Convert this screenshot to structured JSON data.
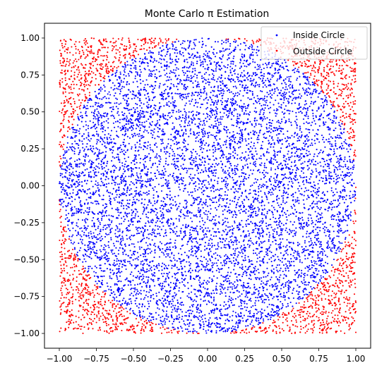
{
  "chart_data": {
    "type": "scatter",
    "title": "Monte Carlo π Estimation",
    "xlabel": "",
    "ylabel": "",
    "xlim": [
      -1.1,
      1.1
    ],
    "ylim": [
      -1.1,
      1.1
    ],
    "x_ticks": [
      "−1.00",
      "−0.75",
      "−0.50",
      "−0.25",
      "0.00",
      "0.25",
      "0.50",
      "0.75",
      "1.00"
    ],
    "x_tick_values": [
      -1.0,
      -0.75,
      -0.5,
      -0.25,
      0.0,
      0.25,
      0.5,
      0.75,
      1.0
    ],
    "y_ticks": [
      "1.00",
      "0.75",
      "0.50",
      "0.25",
      "0.00",
      "−0.25",
      "−0.50",
      "−0.75",
      "−1.00"
    ],
    "y_tick_values": [
      1.0,
      0.75,
      0.5,
      0.25,
      0.0,
      -0.25,
      -0.5,
      -0.75,
      -1.0
    ],
    "grid": false,
    "legend_position": "top-right",
    "series": [
      {
        "name": "Inside Circle",
        "color": "#0000ff",
        "rule": "x^2 + y^2 <= 1",
        "sample_region": [
          [
            -1,
            1
          ],
          [
            -1,
            1
          ]
        ]
      },
      {
        "name": "Outside Circle",
        "color": "#ff0000",
        "rule": "x^2 + y^2 > 1",
        "sample_region": [
          [
            -1,
            1
          ],
          [
            -1,
            1
          ]
        ]
      }
    ]
  }
}
